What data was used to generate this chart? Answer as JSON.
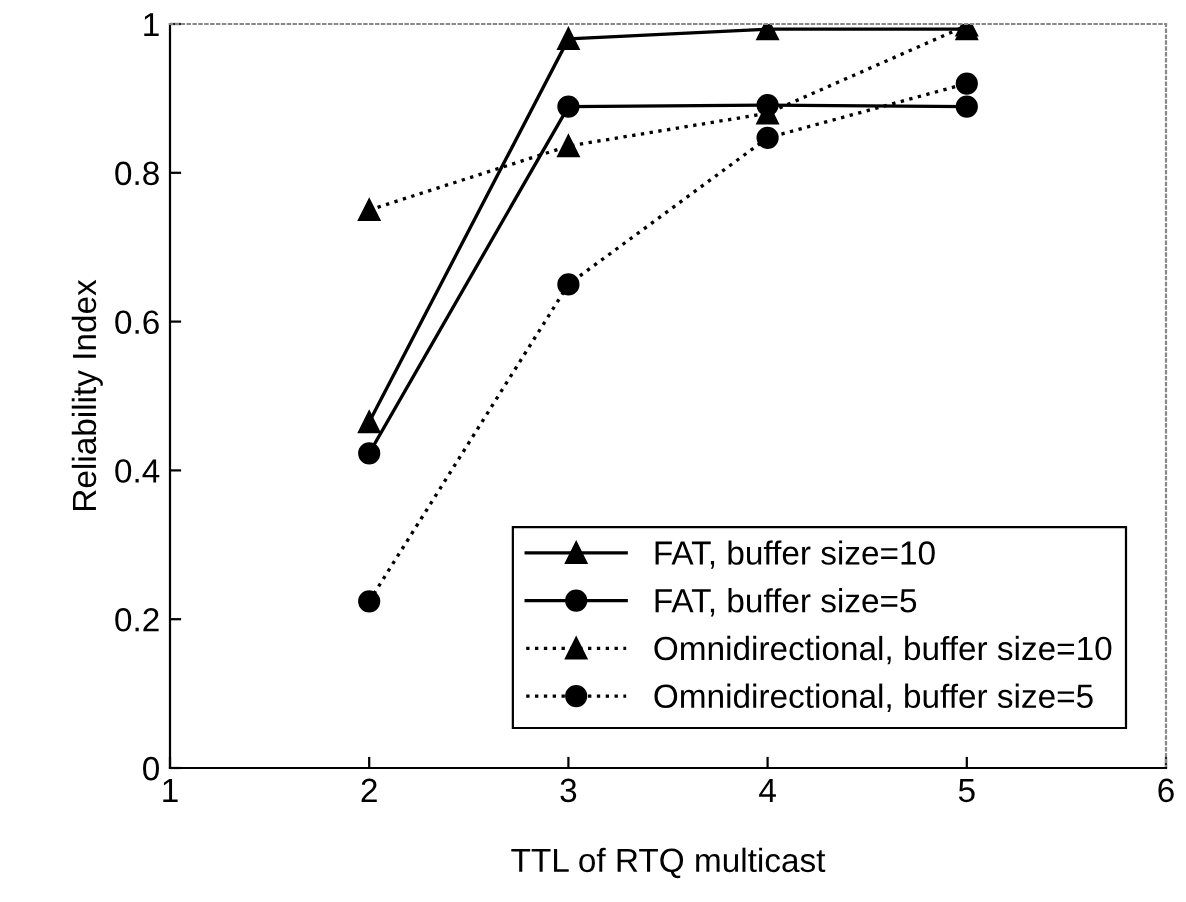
{
  "chart_data": {
    "type": "line",
    "xlabel": "TTL of RTQ multicast",
    "ylabel": "Reliability Index",
    "x": [
      2,
      3,
      4,
      5
    ],
    "series": [
      {
        "name": "FAT, buffer size=10",
        "color": "#000000",
        "marker": "triangle",
        "line_style": "solid",
        "values": [
          0.465,
          0.98,
          0.993,
          0.993
        ]
      },
      {
        "name": "FAT, buffer size=5",
        "color": "#000000",
        "marker": "circle",
        "line_style": "solid",
        "values": [
          0.423,
          0.889,
          0.891,
          0.889
        ]
      },
      {
        "name": "Omnidirectional, buffer size=10",
        "color": "#000000",
        "marker": "triangle",
        "line_style": "dotted",
        "values": [
          0.75,
          0.836,
          0.88,
          0.998
        ]
      },
      {
        "name": "Omnidirectional, buffer size=5",
        "color": "#000000",
        "marker": "circle",
        "line_style": "dotted",
        "values": [
          0.224,
          0.65,
          0.847,
          0.92
        ]
      }
    ],
    "xlim": [
      1,
      6
    ],
    "xticks": [
      1,
      2,
      3,
      4,
      5,
      6
    ],
    "ylim": [
      0,
      1
    ],
    "yticks": [
      0,
      0.2,
      0.4,
      0.6,
      0.8,
      1
    ],
    "grid": false,
    "legend": "bottom right"
  }
}
